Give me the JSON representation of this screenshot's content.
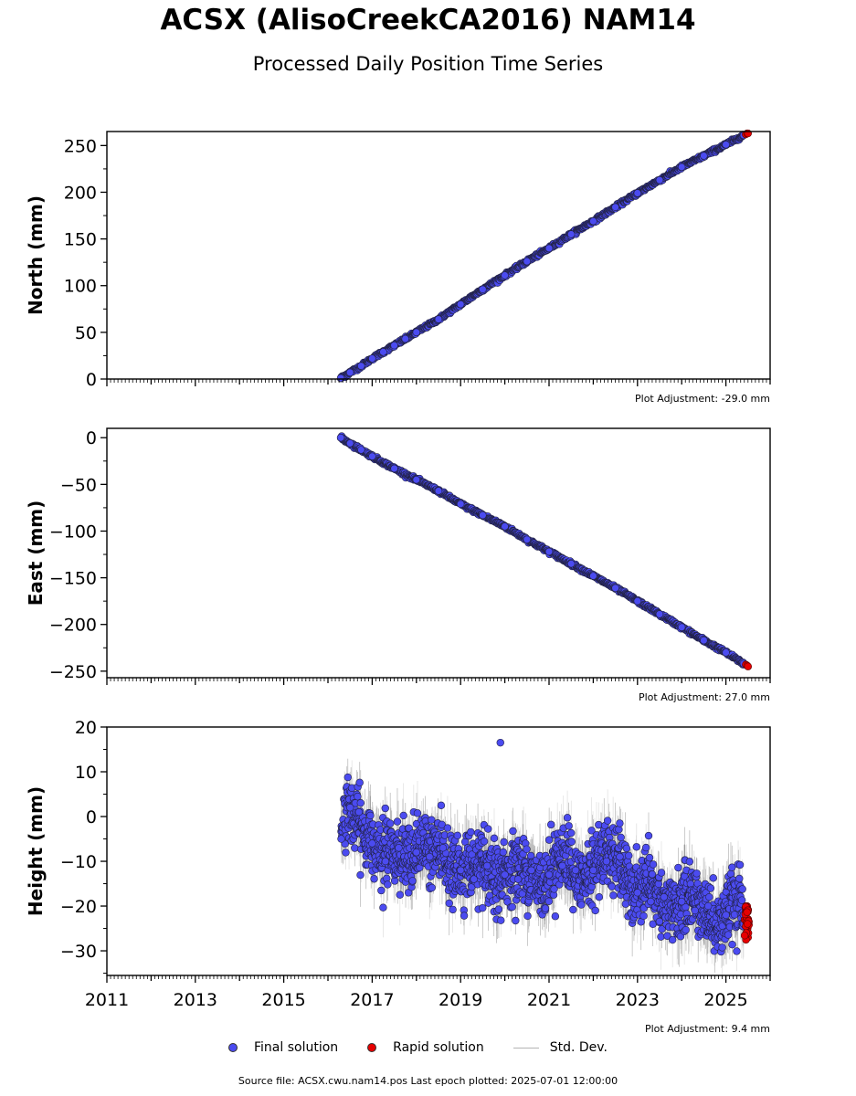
{
  "title": "ACSX (AlisoCreekCA2016) NAM14",
  "subtitle": "Processed Daily Position Time Series",
  "legend": {
    "final_label": "Final solution",
    "rapid_label": "Rapid solution",
    "std_label": "Std. Dev.",
    "final_color": "#4b4bf0",
    "rapid_color": "#e60000",
    "std_color": "#b4b4b4"
  },
  "footer": "Source file: ACSX.cwu.nam14.pos  Last epoch plotted: 2025-07-01 12:00:00",
  "chart_data": [
    {
      "type": "scatter",
      "ylabel": "North (mm)",
      "ylim": [
        0,
        265
      ],
      "xlim": [
        2011.0,
        2026.0
      ],
      "yticks": [
        0,
        50,
        100,
        150,
        200,
        250
      ],
      "ytick_labels": [
        "0",
        "50",
        "100",
        "150",
        "200",
        "250"
      ],
      "xticks": [
        2011,
        2013,
        2015,
        2017,
        2019,
        2021,
        2023,
        2025
      ],
      "xtick_labels": [],
      "adjustment": "Plot Adjustment: -29.0 mm",
      "series": [
        {
          "name": "Final solution",
          "x": [
            2016.29,
            2016.5,
            2016.75,
            2017.0,
            2017.25,
            2017.5,
            2017.75,
            2018.0,
            2018.5,
            2019.0,
            2019.5,
            2020.0,
            2020.5,
            2021.0,
            2021.5,
            2022.0,
            2022.5,
            2023.0,
            2023.5,
            2024.0,
            2024.5,
            2025.0,
            2025.4
          ],
          "y": [
            1,
            7,
            14,
            22,
            29,
            36,
            43,
            50,
            64,
            80,
            96,
            111,
            126,
            140,
            155,
            169,
            184,
            199,
            213,
            227,
            239,
            251,
            261
          ]
        },
        {
          "name": "Rapid solution",
          "x": [
            2025.45,
            2025.48,
            2025.5
          ],
          "y": [
            262,
            263,
            263
          ]
        }
      ]
    },
    {
      "type": "scatter",
      "ylabel": "East (mm)",
      "ylim": [
        -257,
        10
      ],
      "xlim": [
        2011.0,
        2026.0
      ],
      "yticks": [
        0,
        -50,
        -100,
        -150,
        -200,
        -250
      ],
      "ytick_labels": [
        "0",
        "−50",
        "−100",
        "−150",
        "−200",
        "−250"
      ],
      "xticks": [
        2011,
        2013,
        2015,
        2017,
        2019,
        2021,
        2023,
        2025
      ],
      "xtick_labels": [],
      "adjustment": "Plot Adjustment: 27.0 mm",
      "series": [
        {
          "name": "Final solution",
          "x": [
            2016.29,
            2016.5,
            2016.75,
            2017.0,
            2017.5,
            2018.0,
            2018.5,
            2019.0,
            2019.5,
            2020.0,
            2020.5,
            2021.0,
            2021.5,
            2022.0,
            2022.5,
            2023.0,
            2023.5,
            2024.0,
            2024.5,
            2025.0,
            2025.4
          ],
          "y": [
            0,
            -6,
            -13,
            -20,
            -33,
            -45,
            -57,
            -71,
            -83,
            -95,
            -109,
            -122,
            -135,
            -148,
            -161,
            -175,
            -189,
            -203,
            -217,
            -230,
            -242
          ]
        },
        {
          "name": "Rapid solution",
          "x": [
            2025.45,
            2025.48,
            2025.5
          ],
          "y": [
            -243,
            -244,
            -245
          ]
        }
      ]
    },
    {
      "type": "scatter",
      "ylabel": "Height (mm)",
      "ylim": [
        -35.5,
        20
      ],
      "xlim": [
        2011.0,
        2026.0
      ],
      "yticks": [
        20,
        10,
        0,
        -10,
        -20,
        -30
      ],
      "ytick_labels": [
        "20",
        "10",
        "0",
        "−10",
        "−20",
        "−30"
      ],
      "xticks": [
        2011,
        2013,
        2015,
        2017,
        2019,
        2021,
        2023,
        2025
      ],
      "xtick_labels": [
        "2011",
        "2013",
        "2015",
        "2017",
        "2019",
        "2021",
        "2023",
        "2025"
      ],
      "adjustment": "Plot Adjustment: 9.4 mm",
      "series": [
        {
          "name": "Final solution",
          "x": [
            2016.3,
            2016.5,
            2016.7,
            2017.0,
            2017.3,
            2017.6,
            2018.0,
            2018.3,
            2018.6,
            2019.0,
            2019.3,
            2019.6,
            2019.9,
            2020.0,
            2020.3,
            2020.6,
            2021.0,
            2021.3,
            2021.6,
            2022.0,
            2022.3,
            2022.6,
            2023.0,
            2023.3,
            2023.6,
            2024.0,
            2024.3,
            2024.6,
            2025.0,
            2025.4
          ],
          "y": [
            -5,
            2,
            1,
            -6,
            -10,
            -7,
            -8,
            -9,
            -7,
            -12,
            -14,
            -11,
            16.5,
            -13,
            -14,
            -12,
            -13,
            -11,
            -12,
            -12,
            -10,
            -9,
            -17,
            -19,
            -18,
            -19,
            -21,
            -20,
            -22,
            -22
          ]
        },
        {
          "name": "Rapid solution",
          "x": [
            2025.45,
            2025.47,
            2025.49,
            2025.5
          ],
          "y": [
            -21,
            -23,
            -25,
            -27
          ]
        }
      ]
    }
  ]
}
